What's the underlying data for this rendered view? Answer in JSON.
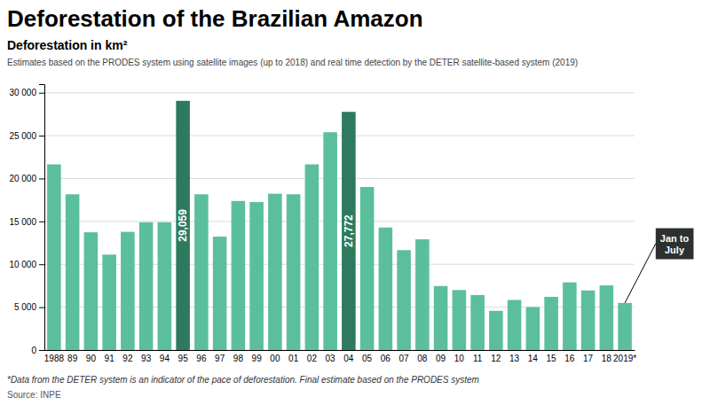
{
  "chart_data": {
    "type": "bar",
    "title": "Deforestation of the Brazilian Amazon",
    "subtitle": "Deforestation in km²",
    "description": "Estimates based on the PRODES system using satellite images (up to 2018) and real time detection by the DETER satellite-based system (2019)",
    "footnote": "*Data from the DETER system is an indicator of the pace of deforestation. Final estimate based on the PRODES system",
    "source": "Source: INPE",
    "categories": [
      "1988",
      "89",
      "90",
      "91",
      "92",
      "93",
      "94",
      "95",
      "96",
      "97",
      "98",
      "99",
      "00",
      "01",
      "02",
      "03",
      "04",
      "05",
      "06",
      "07",
      "08",
      "09",
      "10",
      "11",
      "12",
      "13",
      "14",
      "15",
      "16",
      "17",
      "18",
      "2019*"
    ],
    "values": [
      21651,
      18161,
      13730,
      11130,
      13786,
      14896,
      14896,
      29059,
      18161,
      13227,
      17383,
      17259,
      18226,
      18165,
      21651,
      25396,
      27772,
      19014,
      14285,
      11651,
      12911,
      7464,
      7000,
      6418,
      4571,
      5843,
      5012,
      6207,
      7893,
      6947,
      7536,
      5494
    ],
    "value_labels": [
      null,
      null,
      null,
      null,
      null,
      null,
      null,
      "29,059",
      null,
      null,
      null,
      null,
      null,
      null,
      null,
      null,
      "27,772",
      null,
      null,
      null,
      null,
      null,
      null,
      null,
      null,
      null,
      null,
      null,
      null,
      null,
      null,
      null
    ],
    "colors": [
      "#5bbf9b",
      "#5bbf9b",
      "#5bbf9b",
      "#5bbf9b",
      "#5bbf9b",
      "#5bbf9b",
      "#5bbf9b",
      "#2d7a5e",
      "#5bbf9b",
      "#5bbf9b",
      "#5bbf9b",
      "#5bbf9b",
      "#5bbf9b",
      "#5bbf9b",
      "#5bbf9b",
      "#5bbf9b",
      "#2d7a5e",
      "#5bbf9b",
      "#5bbf9b",
      "#5bbf9b",
      "#5bbf9b",
      "#5bbf9b",
      "#5bbf9b",
      "#5bbf9b",
      "#5bbf9b",
      "#5bbf9b",
      "#5bbf9b",
      "#5bbf9b",
      "#5bbf9b",
      "#5bbf9b",
      "#5bbf9b",
      "#5bbf9b"
    ],
    "annotations": [
      {
        "category": "2019*",
        "text": "Jan to\nJuly"
      }
    ],
    "ylim": [
      0,
      31000
    ],
    "yticks": [
      0,
      {
        "value": 5000,
        "label": "5 000"
      },
      {
        "value": 10000,
        "label": "10 000"
      },
      {
        "value": 15000,
        "label": "15 000"
      },
      {
        "value": 20000,
        "label": "20 000"
      },
      {
        "value": 25000,
        "label": "25 000"
      },
      {
        "value": 30000,
        "label": "30 000"
      }
    ],
    "grid": true
  }
}
